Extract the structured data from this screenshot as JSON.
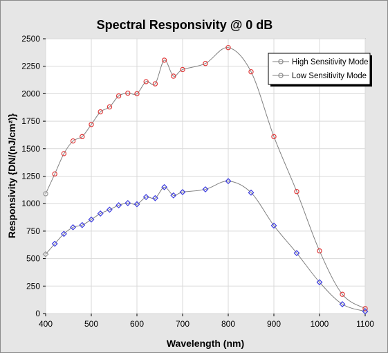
{
  "chart_data": {
    "type": "line",
    "title": "Spectral Responsivity @ 0 dB",
    "xlabel": "Wavelength (nm)",
    "ylabel": "Responsivity {DN/(nJ/cm²)}",
    "xlim": [
      400,
      1100
    ],
    "ylim": [
      0,
      2500
    ],
    "x_ticks": [
      400,
      500,
      600,
      700,
      800,
      900,
      1000,
      1100
    ],
    "y_ticks": [
      0,
      250,
      500,
      750,
      1000,
      1250,
      1500,
      1750,
      2000,
      2250,
      2500
    ],
    "grid": true,
    "legend_position": "top-right",
    "series": [
      {
        "name": "High Sensitivity Mode",
        "marker": "circle",
        "marker_color": "#e03c3c",
        "line_color": "#808080",
        "x": [
          400,
          420,
          440,
          460,
          480,
          500,
          520,
          540,
          560,
          580,
          600,
          620,
          640,
          660,
          680,
          700,
          750,
          800,
          850,
          900,
          950,
          1000,
          1050,
          1100
        ],
        "y": [
          1090,
          1270,
          1455,
          1570,
          1610,
          1720,
          1835,
          1880,
          1980,
          2005,
          2000,
          2110,
          2090,
          2305,
          2160,
          2220,
          2275,
          2420,
          2200,
          1610,
          1110,
          570,
          175,
          45
        ]
      },
      {
        "name": "Low Sensitivity Mode",
        "marker": "diamond",
        "marker_color": "#3c3ce0",
        "line_color": "#808080",
        "x": [
          400,
          420,
          440,
          460,
          480,
          500,
          520,
          540,
          560,
          580,
          600,
          620,
          640,
          660,
          680,
          700,
          750,
          800,
          850,
          900,
          950,
          1000,
          1050,
          1100
        ],
        "y": [
          540,
          635,
          725,
          785,
          805,
          855,
          910,
          945,
          985,
          1005,
          995,
          1060,
          1050,
          1150,
          1075,
          1105,
          1130,
          1205,
          1100,
          800,
          550,
          285,
          85,
          20
        ]
      }
    ]
  }
}
